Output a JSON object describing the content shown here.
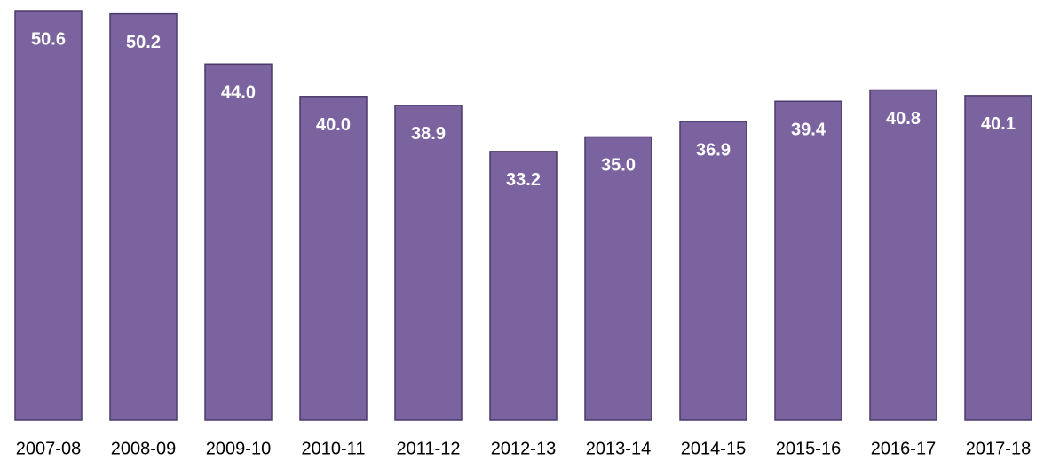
{
  "chart_data": {
    "type": "bar",
    "categories": [
      "2007-08",
      "2008-09",
      "2009-10",
      "2010-11",
      "2011-12",
      "2012-13",
      "2013-14",
      "2014-15",
      "2015-16",
      "2016-17",
      "2017-18"
    ],
    "values": [
      50.6,
      50.2,
      44.0,
      40.0,
      38.9,
      33.2,
      35.0,
      36.9,
      39.4,
      40.8,
      40.1
    ],
    "value_labels": [
      "50.6",
      "50.2",
      "44.0",
      "40.0",
      "38.9",
      "33.2",
      "35.0",
      "36.9",
      "39.4",
      "40.8",
      "40.1"
    ],
    "color": "#7b63a0"
  }
}
